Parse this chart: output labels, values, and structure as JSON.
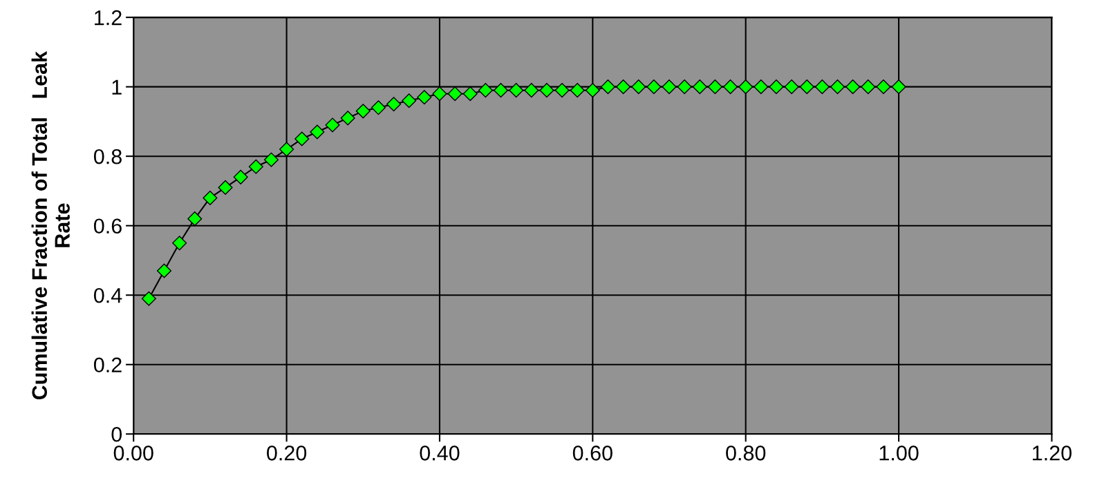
{
  "chart_data": {
    "type": "line",
    "ylabel": "Cumulative Fraction of Total   Leak\nRate",
    "x": [
      0.02,
      0.04,
      0.06,
      0.08,
      0.1,
      0.12,
      0.14,
      0.16,
      0.18,
      0.2,
      0.22,
      0.24,
      0.26,
      0.28,
      0.3,
      0.32,
      0.34,
      0.36,
      0.38,
      0.4,
      0.42,
      0.44,
      0.46,
      0.48,
      0.5,
      0.52,
      0.54,
      0.56,
      0.58,
      0.6,
      0.62,
      0.64,
      0.66,
      0.68,
      0.7,
      0.72,
      0.74,
      0.76,
      0.78,
      0.8,
      0.82,
      0.84,
      0.86,
      0.88,
      0.9,
      0.92,
      0.94,
      0.96,
      0.98,
      1.0
    ],
    "series": [
      {
        "color": "#00ff00",
        "values": [
          0.39,
          0.47,
          0.55,
          0.62,
          0.68,
          0.71,
          0.74,
          0.77,
          0.79,
          0.82,
          0.85,
          0.87,
          0.89,
          0.91,
          0.93,
          0.94,
          0.95,
          0.96,
          0.97,
          0.98,
          0.98,
          0.98,
          0.99,
          0.99,
          0.99,
          0.99,
          0.99,
          0.99,
          0.99,
          0.99,
          1.0,
          1.0,
          1.0,
          1.0,
          1.0,
          1.0,
          1.0,
          1.0,
          1.0,
          1.0,
          1.0,
          1.0,
          1.0,
          1.0,
          1.0,
          1.0,
          1.0,
          1.0,
          1.0,
          1.0
        ]
      }
    ],
    "xlim": [
      0,
      1.2
    ],
    "xticks": [
      {
        "value": 0,
        "label": "0.00"
      },
      {
        "value": 0.2,
        "label": "0.20"
      },
      {
        "value": 0.4,
        "label": "0.40"
      },
      {
        "value": 0.6,
        "label": "0.60"
      },
      {
        "value": 0.8,
        "label": "0.80"
      },
      {
        "value": 1.0,
        "label": "1.00"
      },
      {
        "value": 1.2,
        "label": "1.20"
      }
    ],
    "ylim": [
      0,
      1.2
    ],
    "yticks": [
      0,
      0.2,
      0.4,
      0.6,
      0.8,
      1,
      1.2
    ],
    "grid": true,
    "marker": "diamond",
    "line_style": "solid",
    "legend": false
  }
}
